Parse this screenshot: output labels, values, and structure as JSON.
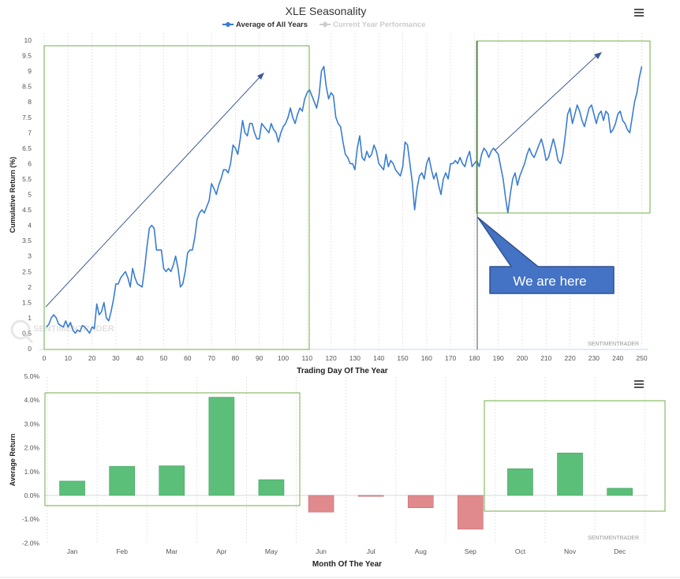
{
  "chart_data": [
    {
      "type": "line",
      "title": "XLE Seasonality",
      "xlabel": "Trading Day Of The Year",
      "ylabel": "Cumulative Return (%)",
      "xlim": [
        0,
        252
      ],
      "ylim": [
        0,
        10
      ],
      "xticks": [
        "0",
        "10",
        "20",
        "30",
        "40",
        "50",
        "60",
        "70",
        "80",
        "90",
        "100",
        "110",
        "120",
        "130",
        "140",
        "150",
        "160",
        "170",
        "180",
        "190",
        "200",
        "210",
        "220",
        "230",
        "240",
        "250"
      ],
      "yticks": [
        "0",
        "0.5",
        "1",
        "1.5",
        "2",
        "2.5",
        "3",
        "3.5",
        "4",
        "4.5",
        "5",
        "5.5",
        "6",
        "6.5",
        "7",
        "7.5",
        "8",
        "8.5",
        "9",
        "9.5",
        "10"
      ],
      "legend": [
        {
          "name": "Average of All Years",
          "color": "#3a7dd1",
          "active": true
        },
        {
          "name": "Current Year Performance",
          "color": "#cccccc",
          "active": false
        }
      ],
      "credit": "SENTIMENTRADER",
      "watermark": "SENTIMENTRADER",
      "annotation": "We are here",
      "grid": "vertical",
      "series": [
        {
          "name": "Average of All Years",
          "color": "#3a7dd1",
          "points": [
            [
              1,
              0.7
            ],
            [
              2,
              0.8
            ],
            [
              3,
              1.0
            ],
            [
              4,
              1.1
            ],
            [
              5,
              1.0
            ],
            [
              6,
              0.8
            ],
            [
              7,
              0.75
            ],
            [
              8,
              0.7
            ],
            [
              9,
              0.9
            ],
            [
              10,
              0.7
            ],
            [
              11,
              0.85
            ],
            [
              12,
              0.6
            ],
            [
              13,
              0.5
            ],
            [
              14,
              0.6
            ],
            [
              15,
              0.55
            ],
            [
              16,
              0.75
            ],
            [
              17,
              0.7
            ],
            [
              18,
              0.6
            ],
            [
              19,
              0.5
            ],
            [
              20,
              0.7
            ],
            [
              21,
              0.65
            ],
            [
              22,
              1.45
            ],
            [
              23,
              1.1
            ],
            [
              24,
              1.2
            ],
            [
              25,
              1.5
            ],
            [
              26,
              1.0
            ],
            [
              27,
              0.9
            ],
            [
              28,
              1.2
            ],
            [
              29,
              1.6
            ],
            [
              30,
              2.1
            ],
            [
              31,
              2.1
            ],
            [
              32,
              2.3
            ],
            [
              33,
              2.4
            ],
            [
              34,
              2.5
            ],
            [
              35,
              2.3
            ],
            [
              36,
              2.0
            ],
            [
              37,
              2.6
            ],
            [
              38,
              2.3
            ],
            [
              39,
              2.1
            ],
            [
              40,
              2.05
            ],
            [
              41,
              2.0
            ],
            [
              42,
              2.6
            ],
            [
              43,
              3.3
            ],
            [
              44,
              3.9
            ],
            [
              45,
              4.0
            ],
            [
              46,
              3.9
            ],
            [
              47,
              3.2
            ],
            [
              48,
              3.2
            ],
            [
              49,
              3.2
            ],
            [
              50,
              2.6
            ],
            [
              51,
              2.5
            ],
            [
              52,
              2.6
            ],
            [
              53,
              2.5
            ],
            [
              54,
              2.7
            ],
            [
              55,
              3.0
            ],
            [
              56,
              2.6
            ],
            [
              57,
              2.0
            ],
            [
              58,
              2.1
            ],
            [
              59,
              2.5
            ],
            [
              60,
              3.1
            ],
            [
              61,
              3.2
            ],
            [
              62,
              3.2
            ],
            [
              63,
              3.6
            ],
            [
              64,
              4.2
            ],
            [
              65,
              4.4
            ],
            [
              66,
              4.5
            ],
            [
              67,
              4.4
            ],
            [
              68,
              4.6
            ],
            [
              69,
              4.8
            ],
            [
              70,
              5.35
            ],
            [
              71,
              5.2
            ],
            [
              72,
              5.0
            ],
            [
              73,
              5.3
            ],
            [
              74,
              5.5
            ],
            [
              75,
              5.8
            ],
            [
              76,
              5.8
            ],
            [
              77,
              5.7
            ],
            [
              78,
              6.0
            ],
            [
              79,
              6.6
            ],
            [
              80,
              6.5
            ],
            [
              81,
              6.3
            ],
            [
              82,
              6.8
            ],
            [
              83,
              7.4
            ],
            [
              84,
              7.0
            ],
            [
              85,
              6.9
            ],
            [
              86,
              7.3
            ],
            [
              87,
              7.3
            ],
            [
              88,
              7.0
            ],
            [
              89,
              6.8
            ],
            [
              90,
              6.8
            ],
            [
              91,
              7.3
            ],
            [
              92,
              7.2
            ],
            [
              93,
              7.1
            ],
            [
              94,
              7.0
            ],
            [
              95,
              7.3
            ],
            [
              96,
              7.1
            ],
            [
              97,
              7.0
            ],
            [
              98,
              6.7
            ],
            [
              99,
              7.0
            ],
            [
              100,
              7.2
            ],
            [
              101,
              7.3
            ],
            [
              102,
              7.5
            ],
            [
              103,
              7.8
            ],
            [
              104,
              7.5
            ],
            [
              105,
              7.3
            ],
            [
              106,
              7.6
            ],
            [
              107,
              7.8
            ],
            [
              108,
              7.7
            ],
            [
              109,
              8.1
            ],
            [
              110,
              8.3
            ],
            [
              111,
              8.4
            ],
            [
              112,
              8.2
            ],
            [
              113,
              8.0
            ],
            [
              114,
              7.8
            ],
            [
              115,
              8.2
            ],
            [
              116,
              9.0
            ],
            [
              117,
              9.15
            ],
            [
              118,
              8.5
            ],
            [
              119,
              8.1
            ],
            [
              120,
              8.3
            ],
            [
              121,
              8.2
            ],
            [
              122,
              7.5
            ],
            [
              123,
              7.3
            ],
            [
              124,
              7.2
            ],
            [
              125,
              6.7
            ],
            [
              126,
              6.3
            ],
            [
              127,
              6.2
            ],
            [
              128,
              6.0
            ],
            [
              129,
              6.0
            ],
            [
              130,
              5.8
            ],
            [
              131,
              6.5
            ],
            [
              132,
              6.9
            ],
            [
              133,
              6.2
            ],
            [
              134,
              6.1
            ],
            [
              135,
              6.4
            ],
            [
              136,
              6.2
            ],
            [
              137,
              6.3
            ],
            [
              138,
              6.6
            ],
            [
              139,
              6.4
            ],
            [
              140,
              6.0
            ],
            [
              141,
              5.9
            ],
            [
              142,
              5.8
            ],
            [
              143,
              6.3
            ],
            [
              144,
              5.9
            ],
            [
              145,
              6.1
            ],
            [
              146,
              6.0
            ],
            [
              147,
              5.8
            ],
            [
              148,
              5.7
            ],
            [
              149,
              5.6
            ],
            [
              150,
              5.9
            ],
            [
              151,
              6.7
            ],
            [
              152,
              6.6
            ],
            [
              153,
              6.0
            ],
            [
              154,
              5.4
            ],
            [
              155,
              4.5
            ],
            [
              156,
              5.2
            ],
            [
              157,
              5.6
            ],
            [
              158,
              5.7
            ],
            [
              159,
              5.5
            ],
            [
              160,
              6.0
            ],
            [
              161,
              6.2
            ],
            [
              162,
              5.8
            ],
            [
              163,
              5.5
            ],
            [
              164,
              5.7
            ],
            [
              165,
              5.3
            ],
            [
              166,
              5.0
            ],
            [
              167,
              5.5
            ],
            [
              168,
              5.7
            ],
            [
              169,
              5.5
            ],
            [
              170,
              6.0
            ],
            [
              171,
              6.0
            ],
            [
              172,
              6.1
            ],
            [
              173,
              6.0
            ],
            [
              174,
              6.2
            ],
            [
              175,
              6.0
            ],
            [
              176,
              5.9
            ],
            [
              177,
              6.2
            ],
            [
              178,
              6.4
            ],
            [
              179,
              5.9
            ],
            [
              180,
              6.0
            ],
            [
              181,
              6.1
            ],
            [
              182,
              5.9
            ],
            [
              183,
              6.3
            ],
            [
              184,
              6.5
            ],
            [
              185,
              6.4
            ],
            [
              186,
              6.2
            ],
            [
              187,
              6.4
            ],
            [
              188,
              6.5
            ],
            [
              189,
              6.4
            ],
            [
              190,
              6.3
            ],
            [
              191,
              5.9
            ],
            [
              192,
              5.5
            ],
            [
              193,
              4.9
            ],
            [
              194,
              4.4
            ],
            [
              195,
              5.0
            ],
            [
              196,
              5.5
            ],
            [
              197,
              5.7
            ],
            [
              198,
              5.3
            ],
            [
              199,
              5.6
            ],
            [
              200,
              5.8
            ],
            [
              201,
              6.0
            ],
            [
              202,
              6.3
            ],
            [
              203,
              6.5
            ],
            [
              204,
              6.3
            ],
            [
              205,
              6.2
            ],
            [
              206,
              6.4
            ],
            [
              207,
              6.6
            ],
            [
              208,
              6.8
            ],
            [
              209,
              6.5
            ],
            [
              210,
              6.1
            ],
            [
              211,
              6.2
            ],
            [
              212,
              6.5
            ],
            [
              213,
              6.8
            ],
            [
              214,
              6.5
            ],
            [
              215,
              6.1
            ],
            [
              216,
              6.0
            ],
            [
              217,
              6.3
            ],
            [
              218,
              6.9
            ],
            [
              219,
              7.6
            ],
            [
              220,
              7.8
            ],
            [
              221,
              7.3
            ],
            [
              222,
              7.6
            ],
            [
              223,
              7.9
            ],
            [
              224,
              7.7
            ],
            [
              225,
              7.4
            ],
            [
              226,
              7.2
            ],
            [
              227,
              7.5
            ],
            [
              228,
              7.8
            ],
            [
              229,
              7.9
            ],
            [
              230,
              7.6
            ],
            [
              231,
              7.3
            ],
            [
              232,
              7.6
            ],
            [
              233,
              7.7
            ],
            [
              234,
              7.4
            ],
            [
              235,
              7.7
            ],
            [
              236,
              7.6
            ],
            [
              237,
              7.0
            ],
            [
              238,
              7.1
            ],
            [
              239,
              7.3
            ],
            [
              240,
              7.6
            ],
            [
              241,
              7.7
            ],
            [
              242,
              7.4
            ],
            [
              243,
              7.3
            ],
            [
              244,
              7.1
            ],
            [
              245,
              7.0
            ],
            [
              246,
              7.5
            ],
            [
              247,
              8.0
            ],
            [
              248,
              8.3
            ],
            [
              249,
              8.8
            ],
            [
              250,
              9.15
            ]
          ]
        }
      ]
    },
    {
      "type": "bar",
      "xlabel": "Month Of The Year",
      "ylabel": "Average Return",
      "ylim": [
        -2.0,
        5.0
      ],
      "yticks": [
        "5.0%",
        "4.0%",
        "3.0%",
        "2.0%",
        "1.0%",
        "0.0%",
        "-1.0%",
        "-2.0%"
      ],
      "categories": [
        "Jan",
        "Feb",
        "Mar",
        "Apr",
        "May",
        "Jun",
        "Jul",
        "Aug",
        "Sep",
        "Oct",
        "Nov",
        "Dec"
      ],
      "values": [
        0.6,
        1.22,
        1.24,
        4.12,
        0.66,
        -0.7,
        -0.04,
        -0.52,
        -1.42,
        1.12,
        1.78,
        0.3
      ],
      "positive_color": "#5bbf7a",
      "negative_color": "#e08a8e",
      "credit": "SENTIMENTRADER",
      "grid": "vertical"
    }
  ]
}
